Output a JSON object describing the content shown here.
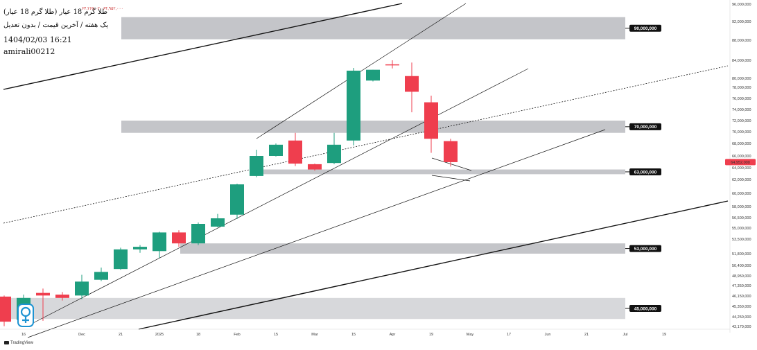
{
  "header": {
    "symbol": "طلا گرم 18 عیار (طلا گرم 18 عیار)",
    "ohlc": "۶۴,۲۶۶,۰۲۰  ۶۴,۹۵۲,۰۰۰",
    "subtitle": "یک هفته / آخرین قیمت / بدون تعدیل",
    "datetime": "1404/02/03 16:21",
    "author": "amirali00212"
  },
  "brand": {
    "name": "TradingView"
  },
  "colors": {
    "up": "#1e9e7e",
    "down": "#ef3e4e",
    "zone": "#c4c5c9",
    "zone_light": "#d7d8db",
    "label_bg": "#111111",
    "last_price": "#ef3e4e"
  },
  "chart_data": {
    "type": "candlestick",
    "timeframe": "weekly",
    "x_ticks": [
      "16",
      "Dec",
      "21",
      "2025",
      "18",
      "Feb",
      "15",
      "Mar",
      "15",
      "Apr",
      "19",
      "May",
      "17",
      "Jun",
      "21",
      "Jul",
      "19"
    ],
    "x_tick_index": [
      0,
      3,
      5,
      7,
      9,
      11,
      13,
      15,
      17,
      19,
      21,
      23,
      25,
      27,
      29,
      31,
      33
    ],
    "y_ticks": [
      "96,000,000",
      "92,000,000",
      "88,000,000",
      "84,000,000",
      "80,000,000",
      "78,000,000",
      "76,000,000",
      "74,000,000",
      "72,000,000",
      "70,000,000",
      "68,000,000",
      "66,000,000",
      "64,000,000",
      "62,000,000",
      "60,000,000",
      "58,000,000",
      "56,500,000",
      "55,000,000",
      "53,500,000",
      "51,800,000",
      "50,400,000",
      "48,950,000",
      "47,350,000",
      "46,150,000",
      "45,350,000",
      "44,250,000",
      "43,170,000"
    ],
    "last_price_label": "64,952,000",
    "candles": [
      {
        "i": -1,
        "o": 46.1,
        "h": 46.2,
        "l": 43.2,
        "c": 43.7
      },
      {
        "i": 0,
        "o": 43.9,
        "h": 46.3,
        "l": 43.6,
        "c": 46.0
      },
      {
        "i": 1,
        "o": 46.5,
        "h": 47.0,
        "l": 43.8,
        "c": 46.2
      },
      {
        "i": 2,
        "o": 46.3,
        "h": 46.6,
        "l": 45.8,
        "c": 46.0
      },
      {
        "i": 3,
        "o": 46.2,
        "h": 49.1,
        "l": 45.9,
        "c": 48.0
      },
      {
        "i": 4,
        "o": 48.3,
        "h": 50.1,
        "l": 48.1,
        "c": 49.5
      },
      {
        "i": 5,
        "o": 49.9,
        "h": 52.5,
        "l": 49.8,
        "c": 52.3
      },
      {
        "i": 6,
        "o": 52.3,
        "h": 52.8,
        "l": 51.9,
        "c": 52.6
      },
      {
        "i": 7,
        "o": 52.1,
        "h": 54.5,
        "l": 51.3,
        "c": 54.4
      },
      {
        "i": 8,
        "o": 54.4,
        "h": 54.7,
        "l": 52.6,
        "c": 53.0
      },
      {
        "i": 9,
        "o": 53.0,
        "h": 55.8,
        "l": 52.8,
        "c": 55.6
      },
      {
        "i": 10,
        "o": 55.2,
        "h": 57.0,
        "l": 55.1,
        "c": 56.4
      },
      {
        "i": 11,
        "o": 56.9,
        "h": 61.4,
        "l": 56.3,
        "c": 61.3
      },
      {
        "i": 12,
        "o": 62.6,
        "h": 67.0,
        "l": 62.4,
        "c": 66.0
      },
      {
        "i": 13,
        "o": 66.0,
        "h": 68.0,
        "l": 65.9,
        "c": 67.8
      },
      {
        "i": 14,
        "o": 68.5,
        "h": 69.8,
        "l": 64.3,
        "c": 64.7
      },
      {
        "i": 15,
        "o": 64.6,
        "h": 64.7,
        "l": 63.5,
        "c": 63.7
      },
      {
        "i": 16,
        "o": 64.8,
        "h": 69.8,
        "l": 64.6,
        "c": 67.8
      },
      {
        "i": 17,
        "o": 68.5,
        "h": 82.3,
        "l": 67.7,
        "c": 81.7
      },
      {
        "i": 18,
        "o": 79.5,
        "h": 81.9,
        "l": 79.3,
        "c": 81.9
      },
      {
        "i": 19,
        "o": 83.1,
        "h": 84.0,
        "l": 82.2,
        "c": 83.0
      },
      {
        "i": 20,
        "o": 80.5,
        "h": 83.5,
        "l": 73.5,
        "c": 77.2
      },
      {
        "i": 21,
        "o": 75.3,
        "h": 76.5,
        "l": 66.5,
        "c": 68.8
      },
      {
        "i": 22,
        "o": 68.4,
        "h": 68.8,
        "l": 64.2,
        "c": 64.95
      }
    ],
    "zones": [
      {
        "label": "90,000,000",
        "top": 93.0,
        "bottom": 88.2,
        "shade": "dark"
      },
      {
        "label": "70,000,000",
        "top": 72.0,
        "bottom": 69.8,
        "shade": "dark"
      },
      {
        "label": "63,000,000",
        "top": 63.7,
        "bottom": 62.9,
        "shade": "dark"
      },
      {
        "label": "53,000,000",
        "top": 53.0,
        "bottom": 51.8,
        "shade": "dark"
      },
      {
        "label": "45,000,000",
        "top": 46.0,
        "bottom": 44.0,
        "shade": "light"
      }
    ]
  }
}
